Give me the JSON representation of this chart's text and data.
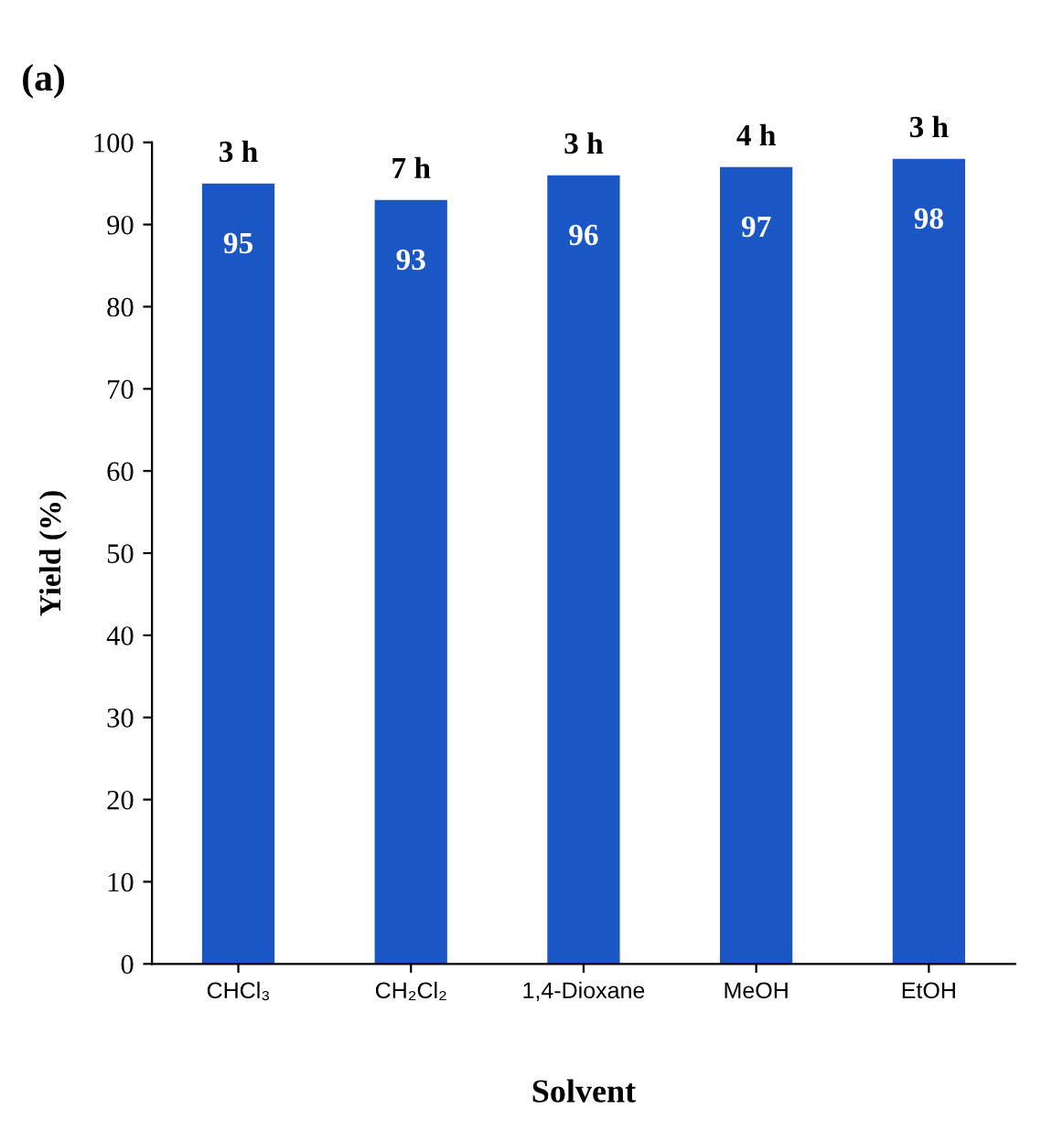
{
  "chart_data": {
    "type": "bar",
    "title": "(a)",
    "xlabel": "Solvent",
    "ylabel": "Yield (%)",
    "categories": [
      "CHCl₃",
      "CH₂Cl₂",
      "1,4-Dioxane",
      "MeOH",
      "EtOH"
    ],
    "values": [
      95,
      93,
      96,
      97,
      98
    ],
    "color": "#1a56c4",
    "ylim": [
      0,
      100
    ],
    "yticks": [
      0,
      10,
      20,
      30,
      40,
      50,
      60,
      70,
      80,
      90,
      100
    ],
    "grid": false,
    "legend": false,
    "data_labels": true,
    "annotations": [
      {
        "text": "3 h",
        "x": "CHCl₃",
        "y": 95
      },
      {
        "text": "7 h",
        "x": "CH₂Cl₂",
        "y": 93
      },
      {
        "text": "3 h",
        "x": "1,4-Dioxane",
        "y": 96
      },
      {
        "text": "4 h",
        "x": "MeOH",
        "y": 97
      },
      {
        "text": "3 h",
        "x": "EtOH",
        "y": 98
      }
    ]
  }
}
